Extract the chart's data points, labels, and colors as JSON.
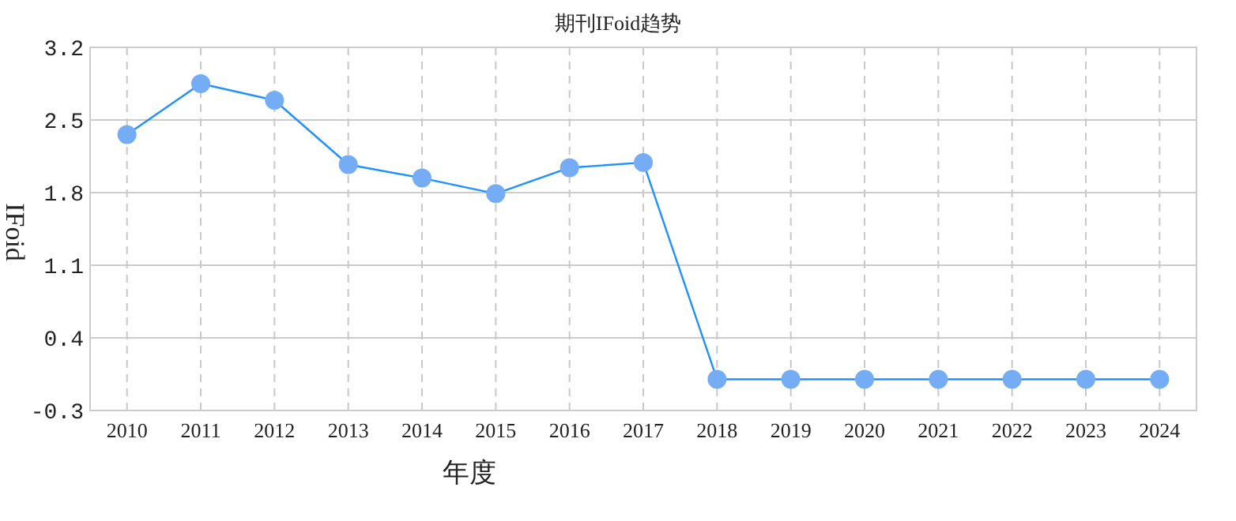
{
  "chart_data": {
    "type": "line",
    "title": "期刊IFoid趋势",
    "xlabel": "年度",
    "ylabel": "IFoid",
    "categories": [
      "2010",
      "2011",
      "2012",
      "2013",
      "2014",
      "2015",
      "2016",
      "2017",
      "2018",
      "2019",
      "2020",
      "2021",
      "2022",
      "2023",
      "2024"
    ],
    "series": [
      {
        "color": "#1e90ff",
        "values": [
          2.36,
          2.85,
          2.69,
          2.07,
          1.94,
          1.79,
          2.04,
          2.09,
          0,
          0,
          0,
          0,
          0,
          0,
          0
        ]
      }
    ],
    "ylim": [
      -0.3,
      3.2
    ],
    "yticks": [
      -0.3,
      0.4,
      1.1,
      1.8,
      2.5,
      3.2
    ],
    "grid": true,
    "marker": "circle",
    "line_style": "solid"
  }
}
